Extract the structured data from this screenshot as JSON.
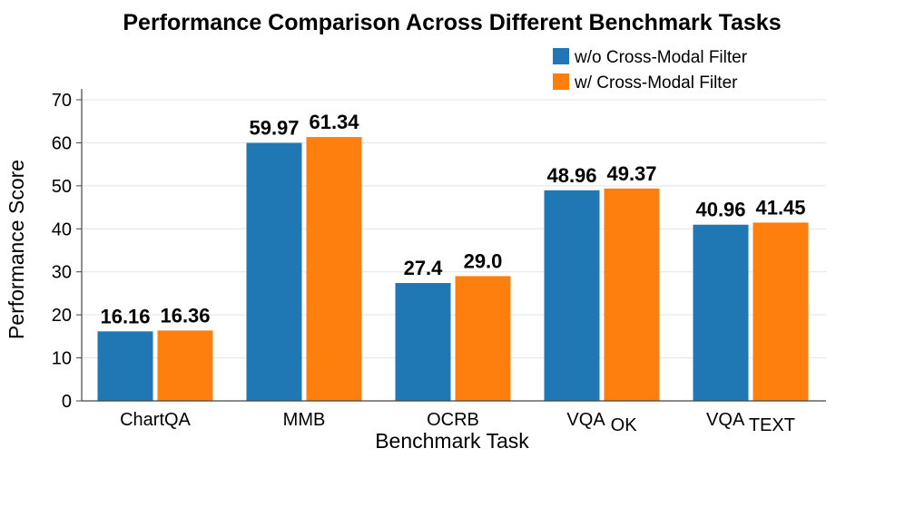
{
  "chart_data": {
    "type": "bar",
    "title": "Performance Comparison Across Different Benchmark Tasks",
    "xlabel": "Benchmark Task",
    "ylabel": "Performance Score",
    "ylim": [
      0,
      70
    ],
    "yticks": [
      "0",
      "10",
      "20",
      "30",
      "40",
      "50",
      "60",
      "70"
    ],
    "grid": true,
    "legend_position": "top-right",
    "categories": [
      {
        "label": "ChartQA",
        "sub": ""
      },
      {
        "label": "MMB",
        "sub": ""
      },
      {
        "label": "OCRB",
        "sub": ""
      },
      {
        "label": "VQA",
        "sub": "OK"
      },
      {
        "label": "VQA",
        "sub": "TEXT"
      }
    ],
    "series": [
      {
        "name": "w/o Cross-Modal Filter",
        "color": "#1f77b4",
        "values": [
          16.16,
          59.97,
          27.4,
          48.96,
          40.96
        ],
        "labels": [
          "16.16",
          "59.97",
          "27.4",
          "48.96",
          "40.96"
        ]
      },
      {
        "name": "w/ Cross-Modal Filter",
        "color": "#ff7f0e",
        "values": [
          16.36,
          61.34,
          29.0,
          49.37,
          41.45
        ],
        "labels": [
          "16.36",
          "61.34",
          "29.0",
          "49.37",
          "41.45"
        ]
      }
    ]
  }
}
